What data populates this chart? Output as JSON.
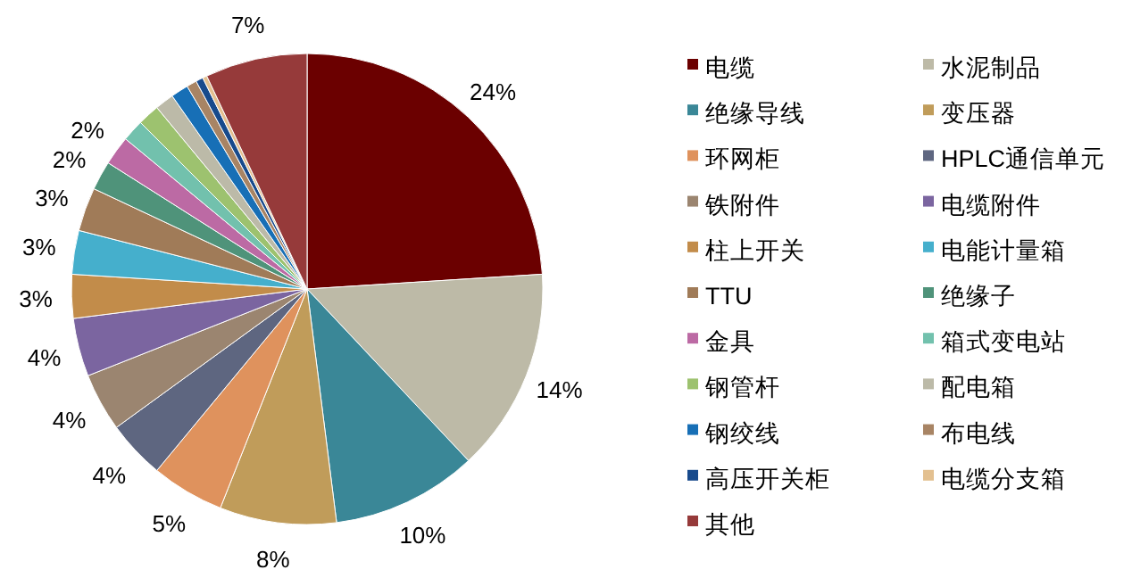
{
  "chart_data": {
    "type": "pie",
    "categories": [
      "电缆",
      "水泥制品",
      "绝缘导线",
      "变压器",
      "环网柜",
      "HPLC通信单元",
      "铁附件",
      "电缆附件",
      "柱上开关",
      "电能计量箱",
      "TTU",
      "绝缘子",
      "金具",
      "箱式变电站",
      "钢管杆",
      "配电箱",
      "钢绞线",
      "布电线",
      "高压开关柜",
      "电缆分支箱",
      "其他"
    ],
    "values": [
      24,
      14,
      10,
      8,
      5,
      4,
      4,
      4,
      3,
      3,
      3,
      2,
      2,
      1.5,
      1.5,
      1.3,
      1.2,
      0.7,
      0.5,
      0.3,
      7
    ],
    "value_labels": [
      "24%",
      "14%",
      "10%",
      "8%",
      "5%",
      "4%",
      "4%",
      "4%",
      "3%",
      "3%",
      "3%",
      "2%",
      "2%",
      null,
      null,
      null,
      null,
      null,
      null,
      null,
      "7%"
    ],
    "colors": [
      "#6b0000",
      "#bdbaa7",
      "#3a8797",
      "#c09c5a",
      "#df925d",
      "#5e6680",
      "#9b8570",
      "#7b65a0",
      "#c28c4a",
      "#45afcc",
      "#a07b58",
      "#4f937a",
      "#bc6aa4",
      "#72c1ad",
      "#9dc26f",
      "#bcbaa8",
      "#176fb6",
      "#a88464",
      "#184a8c",
      "#e3c090",
      "#963a3a"
    ],
    "legend": "right"
  }
}
